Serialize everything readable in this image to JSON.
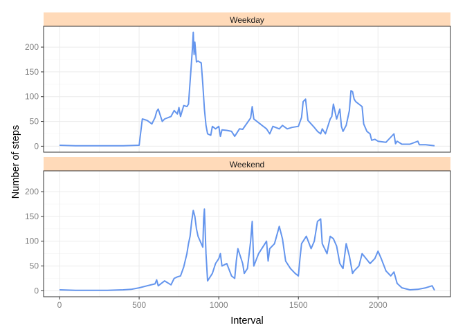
{
  "chart_data": {
    "type": "line",
    "layout": "faceted-vertical",
    "xlabel": "Interval",
    "ylabel": "Number of steps",
    "xlim": [
      -100,
      2455
    ],
    "ylim": [
      -12,
      242
    ],
    "xticks": [
      0,
      500,
      1000,
      1500,
      2000
    ],
    "yticks": [
      0,
      50,
      100,
      150,
      200
    ],
    "grid": true,
    "strip_color": "#FFDAB9",
    "line_color": "#6495ED",
    "panels": [
      {
        "strip_label": "Weekday",
        "x": [
          0,
          100,
          200,
          300,
          400,
          500,
          505,
          520,
          550,
          580,
          600,
          610,
          620,
          630,
          645,
          660,
          700,
          720,
          740,
          750,
          760,
          780,
          800,
          810,
          820,
          830,
          835,
          840,
          845,
          850,
          855,
          860,
          870,
          880,
          890,
          900,
          910,
          920,
          930,
          950,
          960,
          980,
          1000,
          1010,
          1020,
          1050,
          1080,
          1100,
          1130,
          1150,
          1200,
          1210,
          1220,
          1260,
          1300,
          1320,
          1340,
          1380,
          1400,
          1430,
          1460,
          1500,
          1520,
          1530,
          1545,
          1560,
          1600,
          1620,
          1640,
          1650,
          1670,
          1700,
          1710,
          1720,
          1740,
          1760,
          1770,
          1780,
          1800,
          1820,
          1830,
          1840,
          1850,
          1860,
          1900,
          1910,
          1930,
          1950,
          1960,
          1980,
          2000,
          2050,
          2100,
          2110,
          2120,
          2150,
          2200,
          2250,
          2260,
          2300,
          2355
        ],
        "y": [
          2,
          1,
          1,
          1,
          1,
          2,
          15,
          55,
          52,
          45,
          58,
          70,
          75,
          65,
          50,
          55,
          60,
          72,
          65,
          78,
          60,
          82,
          80,
          85,
          130,
          175,
          200,
          230,
          185,
          210,
          190,
          170,
          172,
          170,
          168,
          125,
          75,
          42,
          25,
          22,
          40,
          35,
          40,
          20,
          33,
          32,
          30,
          20,
          35,
          34,
          57,
          80,
          55,
          45,
          35,
          25,
          40,
          35,
          42,
          35,
          38,
          40,
          58,
          90,
          95,
          52,
          38,
          30,
          25,
          35,
          25,
          55,
          60,
          85,
          55,
          75,
          40,
          30,
          42,
          72,
          112,
          110,
          95,
          90,
          80,
          45,
          30,
          25,
          12,
          14,
          10,
          8,
          25,
          5,
          10,
          4,
          4,
          10,
          3,
          3,
          1
        ]
      },
      {
        "strip_label": "Weekend",
        "x": [
          0,
          100,
          200,
          300,
          400,
          450,
          500,
          550,
          600,
          610,
          620,
          660,
          700,
          720,
          740,
          760,
          780,
          800,
          810,
          820,
          830,
          840,
          850,
          860,
          870,
          900,
          905,
          910,
          920,
          930,
          960,
          980,
          1000,
          1010,
          1020,
          1050,
          1080,
          1100,
          1110,
          1120,
          1150,
          1160,
          1180,
          1200,
          1210,
          1220,
          1250,
          1280,
          1300,
          1310,
          1320,
          1350,
          1380,
          1400,
          1420,
          1450,
          1480,
          1500,
          1510,
          1520,
          1550,
          1580,
          1600,
          1620,
          1640,
          1650,
          1680,
          1700,
          1720,
          1740,
          1760,
          1780,
          1800,
          1820,
          1840,
          1850,
          1880,
          1900,
          1950,
          1980,
          2000,
          2020,
          2050,
          2080,
          2100,
          2120,
          2150,
          2200,
          2250,
          2300,
          2340,
          2355
        ],
        "y": [
          2,
          1,
          1,
          1,
          2,
          3,
          6,
          10,
          14,
          22,
          10,
          20,
          12,
          25,
          28,
          30,
          48,
          75,
          95,
          110,
          140,
          162,
          150,
          125,
          110,
          88,
          145,
          165,
          75,
          20,
          35,
          55,
          65,
          75,
          50,
          55,
          30,
          25,
          60,
          85,
          55,
          35,
          45,
          100,
          140,
          50,
          75,
          90,
          100,
          60,
          85,
          95,
          130,
          105,
          60,
          45,
          35,
          30,
          65,
          95,
          110,
          85,
          100,
          140,
          145,
          95,
          75,
          110,
          105,
          90,
          55,
          45,
          95,
          70,
          35,
          40,
          50,
          75,
          55,
          65,
          80,
          65,
          40,
          30,
          38,
          15,
          6,
          2,
          3,
          6,
          10,
          1
        ]
      }
    ]
  }
}
